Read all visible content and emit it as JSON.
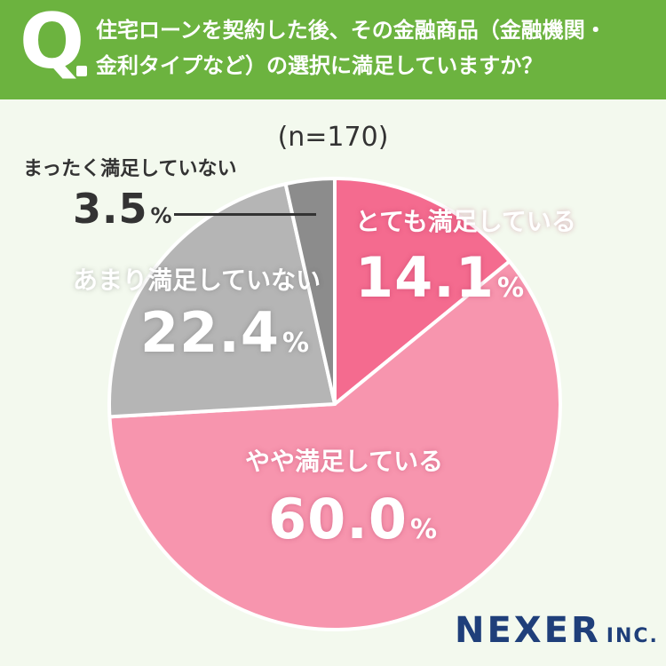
{
  "header": {
    "q_mark": "Q",
    "question_line1": "住宅ローンを契約した後、その金融商品（金融機関・",
    "question_line2": "金利タイプなど）の選択に満足していますか？"
  },
  "sample_size": "(n=170)",
  "chart_data": {
    "type": "pie",
    "start": "top",
    "direction": "clockwise",
    "slices": [
      {
        "label": "とても満足している",
        "value": 14.1,
        "display": "14.1",
        "unit": "%",
        "color": "#f46b8f"
      },
      {
        "label": "やや満足している",
        "value": 60.0,
        "display": "60.0",
        "unit": "%",
        "color": "#f795ae"
      },
      {
        "label": "あまり満足していない",
        "value": 22.4,
        "display": "22.4",
        "unit": "%",
        "color": "#b5b5b5"
      },
      {
        "label": "まったく満足していない",
        "value": 3.5,
        "display": "3.5",
        "unit": "%",
        "color": "#8c8c8c"
      }
    ]
  },
  "logo": {
    "name": "NEXER",
    "suffix": "INC."
  }
}
